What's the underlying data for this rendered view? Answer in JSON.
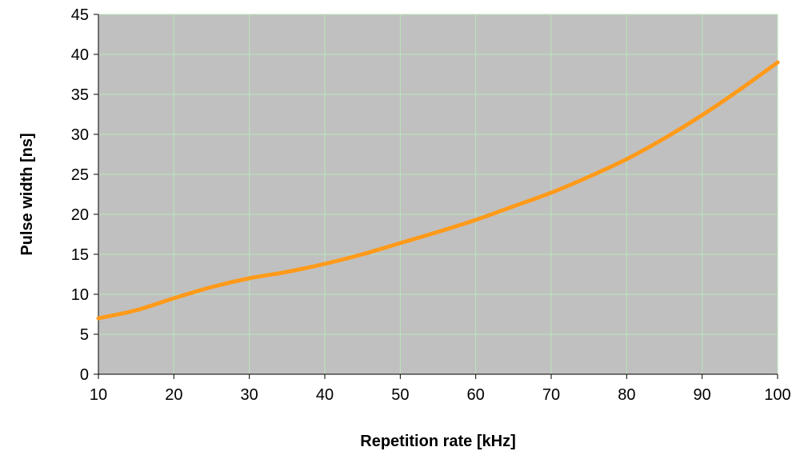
{
  "chart_data": {
    "type": "line",
    "title": "",
    "xlabel": "Repetition rate [kHz]",
    "ylabel": "Pulse width [ns]",
    "xlim": [
      10,
      100
    ],
    "ylim": [
      0,
      45
    ],
    "xticks": [
      10,
      20,
      30,
      40,
      50,
      60,
      70,
      80,
      90,
      100
    ],
    "yticks": [
      0,
      5,
      10,
      15,
      20,
      25,
      30,
      35,
      40,
      45
    ],
    "grid": true,
    "legend": "none",
    "colors": {
      "plot_background": "#c0c0c0",
      "grid": "#b9e6b9",
      "series": "#ff9a1a",
      "axis": "#000000"
    },
    "series": [
      {
        "x": [
          10,
          15,
          20,
          25,
          30,
          35,
          40,
          45,
          50,
          55,
          60,
          65,
          70,
          75,
          80,
          85,
          90,
          95,
          100
        ],
        "values": [
          7.0,
          8.0,
          9.5,
          10.9,
          12.0,
          12.8,
          13.8,
          15.0,
          16.4,
          17.8,
          19.3,
          21.0,
          22.7,
          24.7,
          26.9,
          29.5,
          32.4,
          35.6,
          39.0
        ]
      }
    ]
  }
}
